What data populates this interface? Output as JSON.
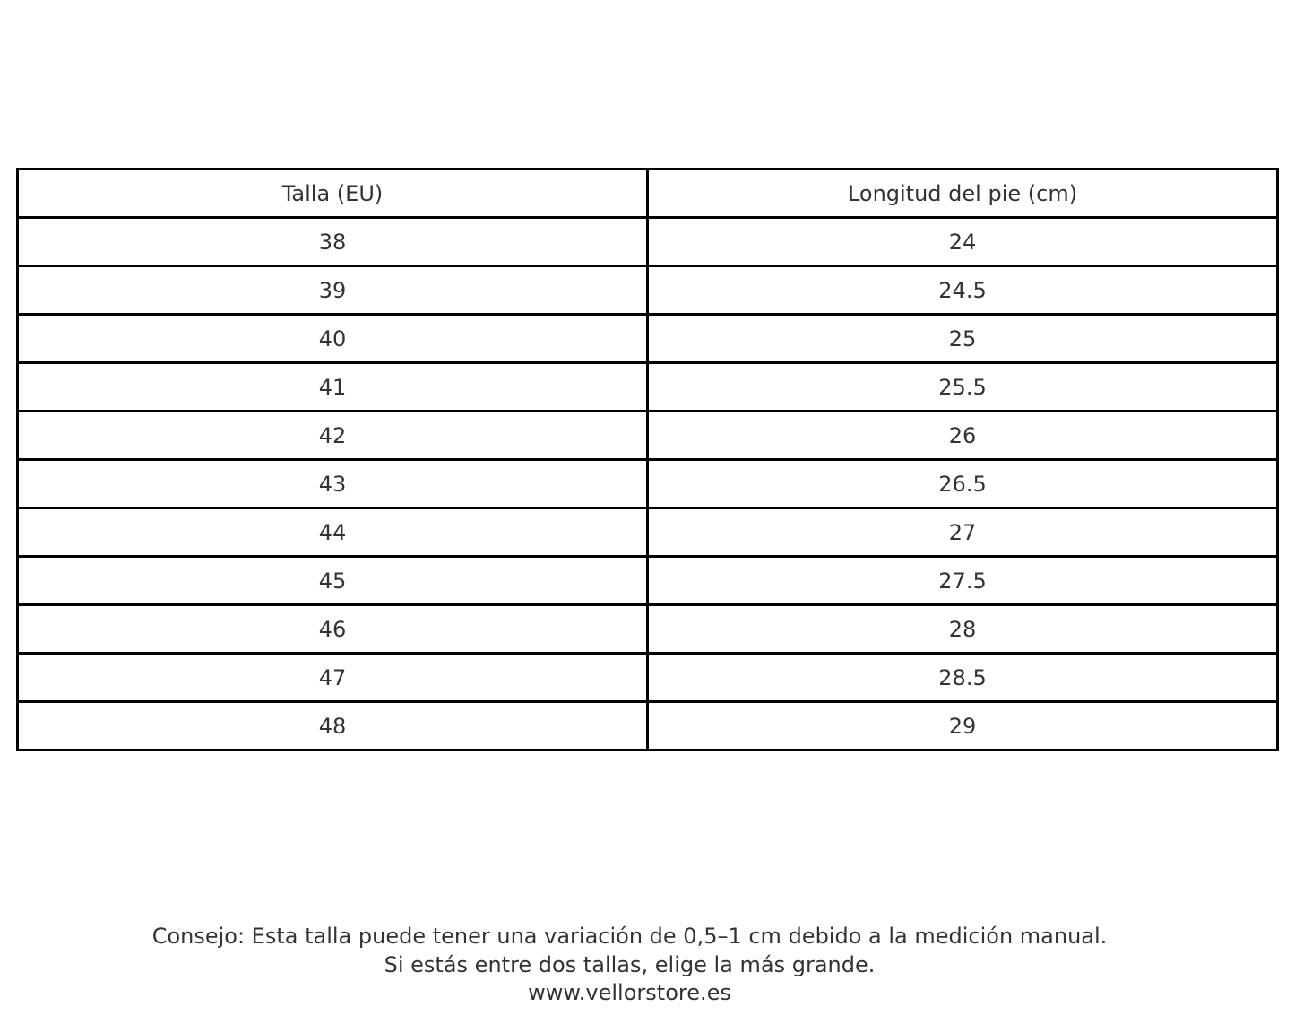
{
  "table": {
    "headers": [
      "Talla (EU)",
      "Longitud del pie (cm)"
    ],
    "rows": [
      [
        "38",
        "24"
      ],
      [
        "39",
        "24.5"
      ],
      [
        "40",
        "25"
      ],
      [
        "41",
        "25.5"
      ],
      [
        "42",
        "26"
      ],
      [
        "43",
        "26.5"
      ],
      [
        "44",
        "27"
      ],
      [
        "45",
        "27.5"
      ],
      [
        "46",
        "28"
      ],
      [
        "47",
        "28.5"
      ],
      [
        "48",
        "29"
      ]
    ]
  },
  "footer": {
    "tip": "Consejo: Esta talla puede tener una variación de 0,5–1 cm debido a la medición manual.",
    "advice": "Si estás entre dos tallas, elige la más grande.",
    "website": "www.vellorstore.es"
  }
}
